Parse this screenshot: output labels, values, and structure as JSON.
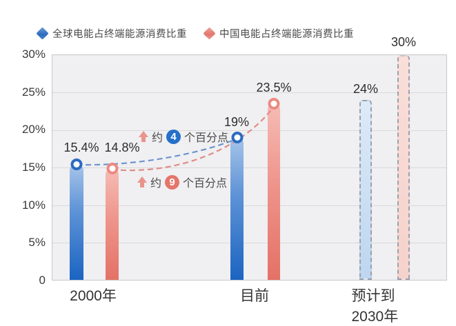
{
  "chart_data": {
    "type": "bar",
    "title": "",
    "categories": [
      "2000年",
      "目前",
      "预计到2030年"
    ],
    "series": [
      {
        "name": "全球电能占终端能源消费比重",
        "color": "#2e72c6",
        "values": [
          15.4,
          19,
          24
        ],
        "value_labels": [
          "15.4%",
          "19%",
          "24%"
        ],
        "bar_styles": [
          "solid",
          "solid",
          "dashed-forecast"
        ]
      },
      {
        "name": "中国电能占终端能源消费比重",
        "color": "#e57f76",
        "values": [
          14.8,
          23.5,
          30
        ],
        "value_labels": [
          "14.8%",
          "23.5%",
          "30%"
        ],
        "bar_styles": [
          "solid",
          "solid",
          "dashed-forecast"
        ]
      }
    ],
    "ylim": [
      0,
      30
    ],
    "ytick_labels": [
      "30%",
      "25%",
      "20%",
      "15%",
      "10%",
      "5%",
      "0"
    ],
    "grid": true,
    "legend_position": "top",
    "annotations": [
      {
        "prefix": "约",
        "number": "4",
        "suffix": "个百分点",
        "badge_color": "#2570c8"
      },
      {
        "prefix": "约",
        "number": "9",
        "suffix": "个百分点",
        "badge_color": "#e4756b"
      }
    ],
    "forecast_note_colors": {
      "dashed_border": "#9aa1ab",
      "blue_fill": "#cfe2f5",
      "pink_fill": "#f8ddd8"
    }
  }
}
